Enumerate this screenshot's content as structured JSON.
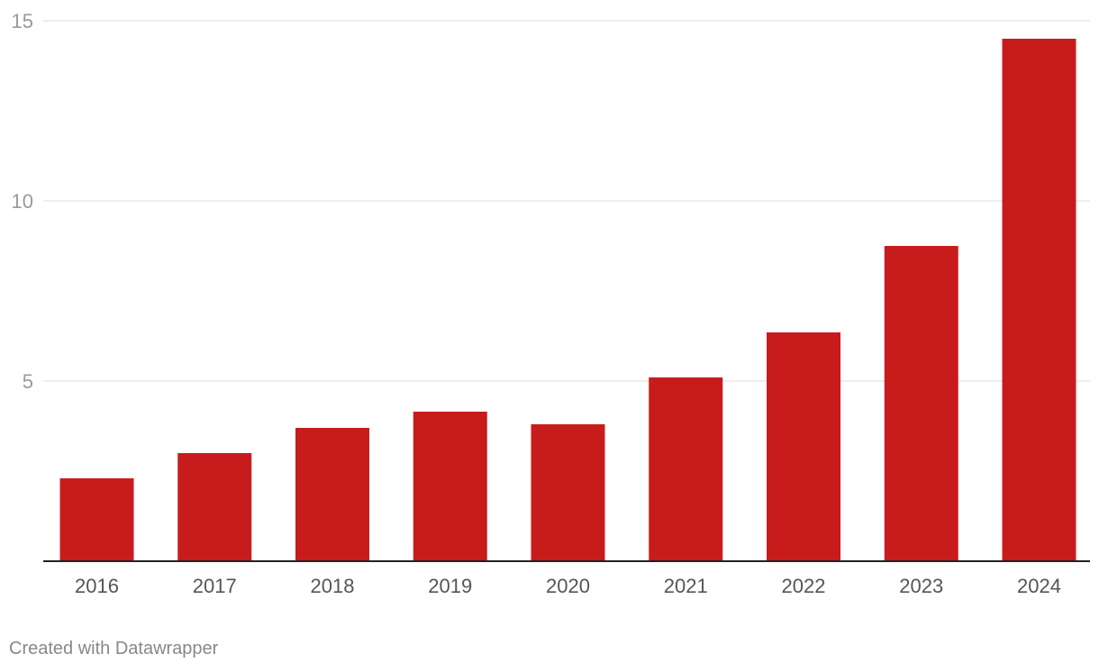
{
  "chart_data": {
    "type": "bar",
    "title": "",
    "xlabel": "",
    "ylabel": "",
    "categories": [
      "2016",
      "2017",
      "2018",
      "2019",
      "2020",
      "2021",
      "2022",
      "2023",
      "2024"
    ],
    "values": [
      2.3,
      3.0,
      3.7,
      4.15,
      3.8,
      5.1,
      6.35,
      8.75,
      14.5
    ],
    "ylim": [
      0,
      15
    ],
    "yticks": [
      5,
      10,
      15
    ],
    "ytick_labels": [
      "5",
      "10",
      "15"
    ],
    "grid": true,
    "colors": {
      "bar": "#c81c1c",
      "grid": "#dddddd",
      "baseline": "#222222"
    }
  },
  "footer": {
    "credit": "Created with Datawrapper"
  }
}
